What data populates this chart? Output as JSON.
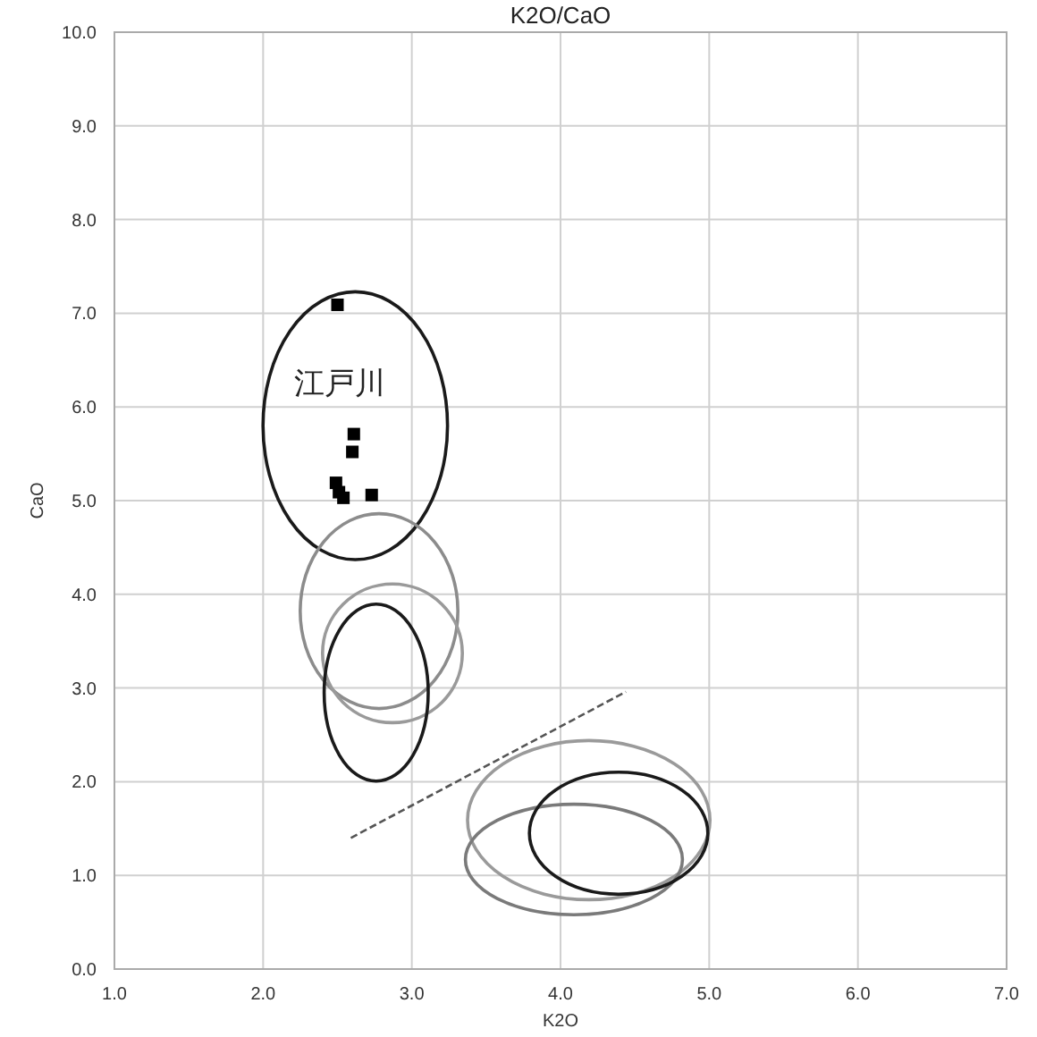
{
  "chart_data": {
    "type": "scatter",
    "title": "K2O/CaO",
    "xlabel": "K2O",
    "ylabel": "CaO",
    "xlim": [
      1,
      7
    ],
    "ylim": [
      0,
      10
    ],
    "xticks": [
      {
        "value": 1,
        "label": "1.0"
      },
      {
        "value": 2,
        "label": "2.0"
      },
      {
        "value": 3,
        "label": "3.0"
      },
      {
        "value": 4,
        "label": "4.0"
      },
      {
        "value": 5,
        "label": "5.0"
      },
      {
        "value": 6,
        "label": "6.0"
      },
      {
        "value": 7,
        "label": "7.0"
      }
    ],
    "yticks": [
      {
        "value": 0,
        "label": "0.0"
      },
      {
        "value": 1,
        "label": "1.0"
      },
      {
        "value": 2,
        "label": "2.0"
      },
      {
        "value": 3,
        "label": "3.0"
      },
      {
        "value": 4,
        "label": "4.0"
      },
      {
        "value": 5,
        "label": "5.0"
      },
      {
        "value": 6,
        "label": "6.0"
      },
      {
        "value": 7,
        "label": "7.0"
      },
      {
        "value": 8,
        "label": "8.0"
      },
      {
        "value": 9,
        "label": "9.0"
      },
      {
        "value": 10,
        "label": "10.0"
      }
    ],
    "grid": true,
    "annotations": [
      "江戸川"
    ],
    "series": [
      {
        "type": "scatter",
        "marker": "square",
        "color": "#000000",
        "x": [
          2.5,
          2.61,
          2.6,
          2.49,
          2.51,
          2.54,
          2.73
        ],
        "values": [
          7.09,
          5.71,
          5.52,
          5.19,
          5.09,
          5.03,
          5.06
        ]
      },
      {
        "type": "line",
        "line_style": "dashed",
        "color": "#555555",
        "x": [
          2.59,
          4.44
        ],
        "values": [
          1.4,
          2.96
        ]
      }
    ]
  }
}
